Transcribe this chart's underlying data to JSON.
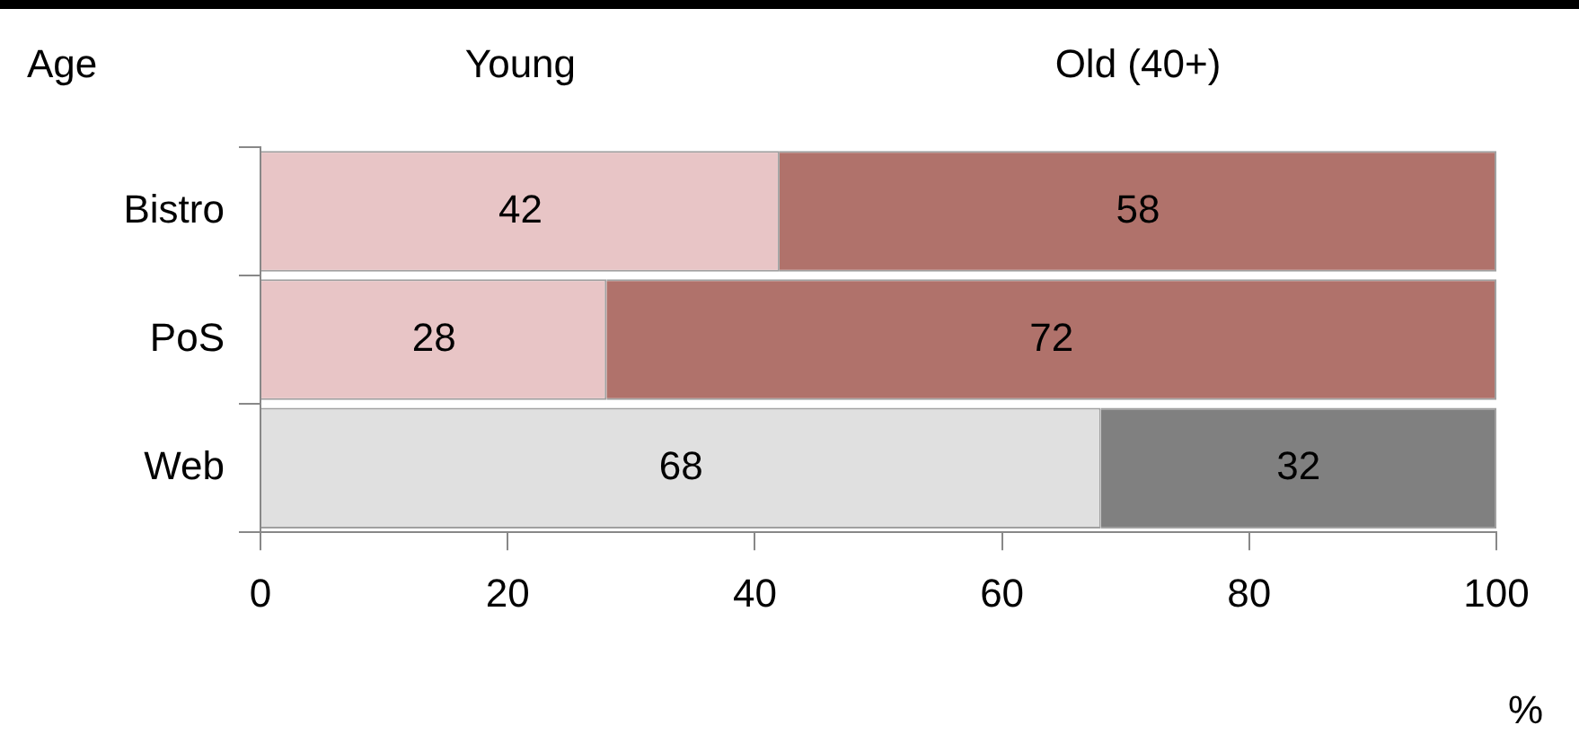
{
  "chart_data": {
    "type": "bar",
    "orientation": "horizontal",
    "stacked": true,
    "categories": [
      "Bistro",
      "PoS",
      "Web"
    ],
    "series": [
      {
        "name": "Young",
        "colors": [
          "#e8c5c6",
          "#e8c5c6",
          "#e0e0e0"
        ],
        "values": [
          42,
          28,
          68
        ]
      },
      {
        "name": "Old (40+)",
        "colors": [
          "#b0726b",
          "#b0726b",
          "#808080"
        ],
        "values": [
          58,
          72,
          32
        ]
      }
    ],
    "legend_title": "Age",
    "legend": "top",
    "xlabel": "%",
    "xlim": [
      0,
      100
    ],
    "xticks": [
      0,
      20,
      40,
      60,
      80,
      100
    ],
    "grid": false,
    "data_labels": true
  }
}
